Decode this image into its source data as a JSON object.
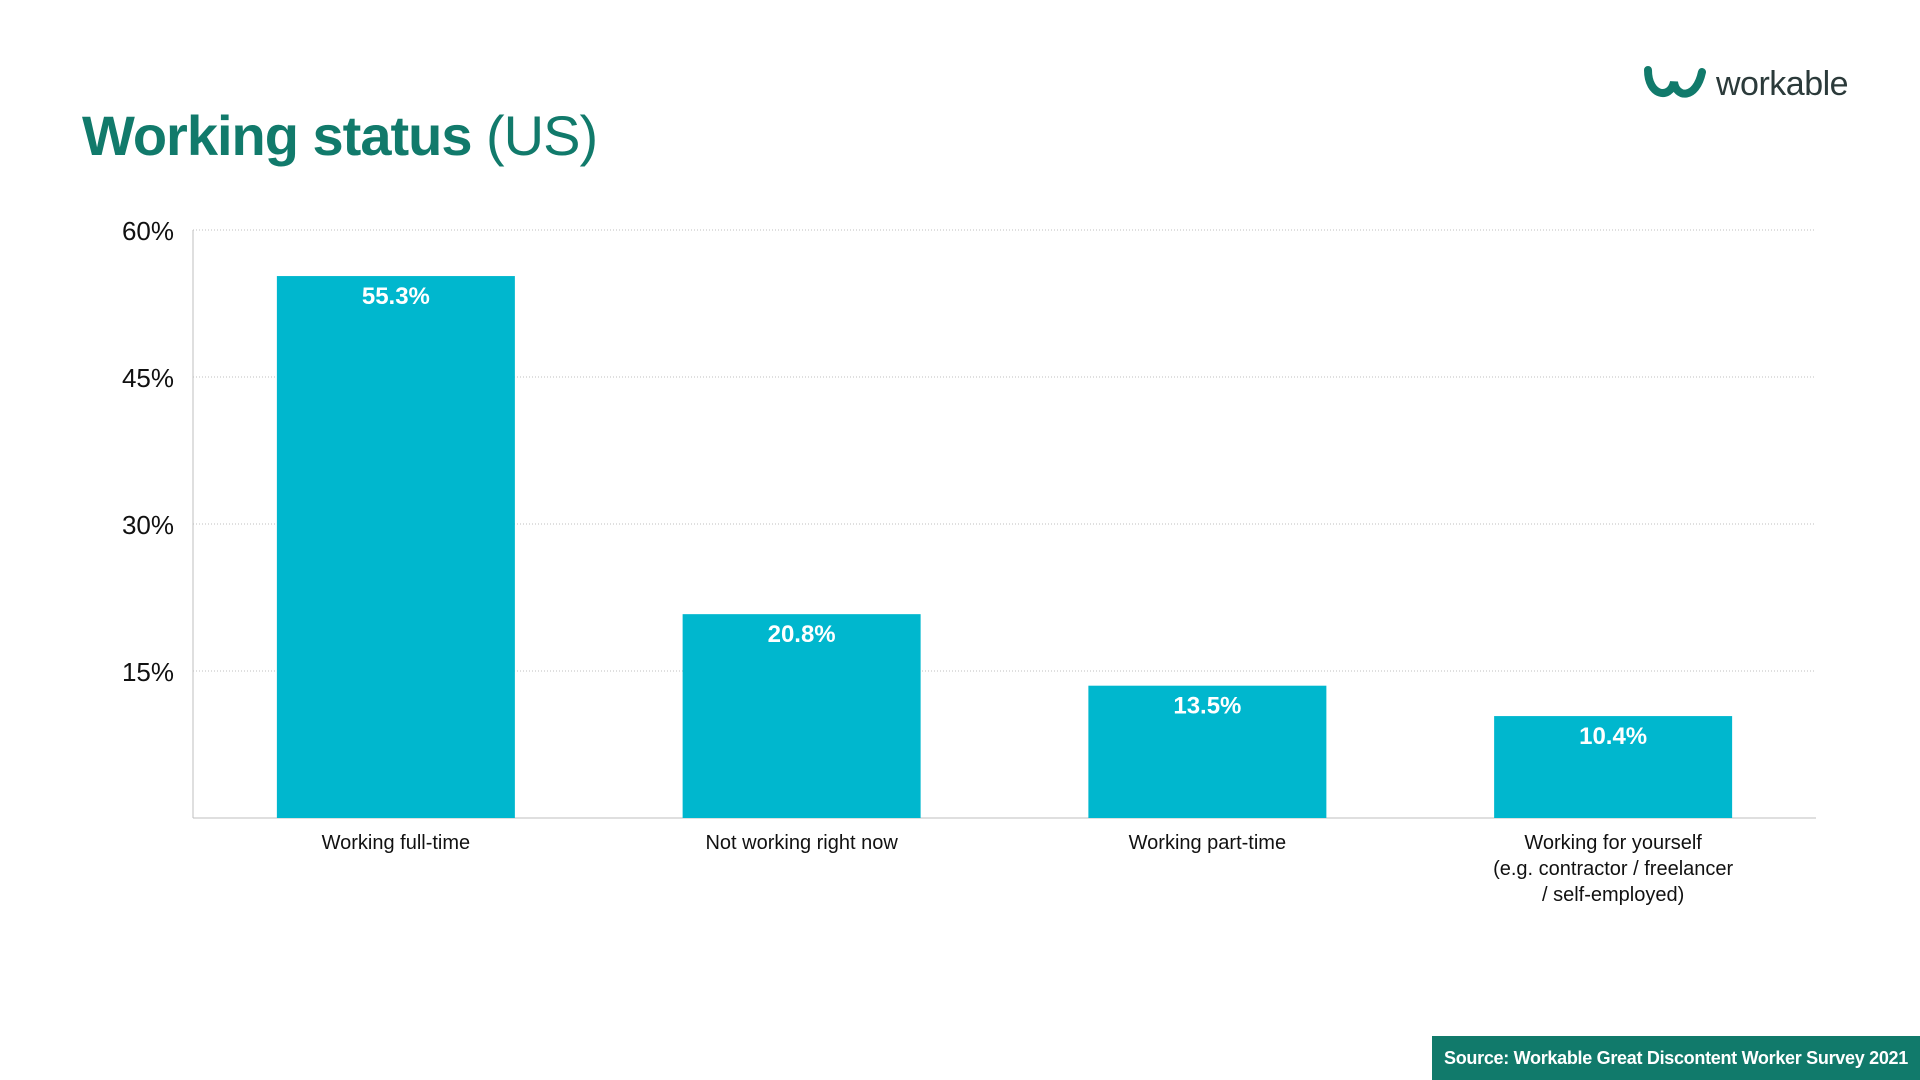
{
  "title": {
    "bold": "Working status",
    "light": "(US)"
  },
  "logo": {
    "text": "workable",
    "icon": "workable-logo-icon"
  },
  "footer": {
    "source": "Source: Workable Great Discontent Worker Survey 2021"
  },
  "colors": {
    "brand": "#117A6B",
    "bar": "#00B7CE",
    "bar_label": "#ffffff",
    "grid": "#bfbfbf",
    "axis_text": "#111111",
    "footer_bg": "#117A6B"
  },
  "chart_data": {
    "type": "bar",
    "categories": [
      [
        "Working full-time"
      ],
      [
        "Not working right now"
      ],
      [
        "Working part-time"
      ],
      [
        "Working for yourself",
        "(e.g. contractor / freelancer",
        "/ self-employed)"
      ]
    ],
    "values": [
      55.3,
      20.8,
      13.5,
      10.4
    ],
    "value_labels": [
      "55.3%",
      "20.8%",
      "13.5%",
      "10.4%"
    ],
    "ylim": [
      0,
      60
    ],
    "yticks": [
      15,
      30,
      45,
      60
    ],
    "ytick_labels": [
      "15%",
      "30%",
      "45%",
      "60%"
    ],
    "grid": true,
    "grid_style": "dotted",
    "legend": "none"
  }
}
